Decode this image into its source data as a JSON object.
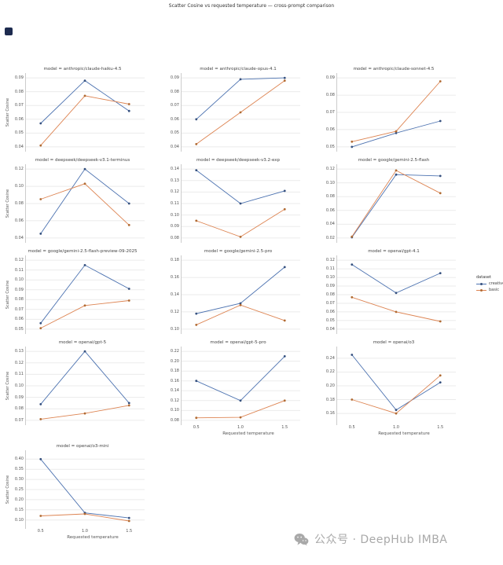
{
  "page": {
    "title": "Scatter Cosine vs requested temperature — cross-prompt comparison",
    "watermark_text": "公众号 · DeepHub IMBA"
  },
  "legend": {
    "title": "dataset",
    "entries": [
      {
        "label": "creative",
        "color": "#4C72B0",
        "dot": "#35507e"
      },
      {
        "label": "basic",
        "color": "#DD8452",
        "dot": "#b06a32"
      }
    ]
  },
  "axes": {
    "xlabel": "Requested temperature",
    "ylabel": "Scatter Cosine",
    "xticks": [
      "0.5",
      "1.0",
      "1.5"
    ]
  },
  "colors": {
    "creative": "#4C72B0",
    "basic": "#DD8452",
    "grid": "#ebebeb",
    "spine": "#cccccc"
  },
  "chart_data": [
    {
      "type": "line",
      "title": "model = anthropic/claude-haiku-4.5",
      "x": [
        0.5,
        1.0,
        1.5
      ],
      "ylim": [
        0.04,
        0.09
      ],
      "yticks": [
        0.04,
        0.05,
        0.06,
        0.07,
        0.08,
        0.09
      ],
      "series": [
        {
          "name": "creative",
          "values": [
            0.057,
            0.088,
            0.066
          ]
        },
        {
          "name": "basic",
          "values": [
            0.041,
            0.077,
            0.071
          ]
        }
      ],
      "show_ylabel": true,
      "show_xaxis": false
    },
    {
      "type": "line",
      "title": "model = anthropic/claude-opus-4.1",
      "x": [
        0.5,
        1.0,
        1.5
      ],
      "ylim": [
        0.04,
        0.09
      ],
      "yticks": [
        0.04,
        0.05,
        0.06,
        0.07,
        0.08,
        0.09
      ],
      "series": [
        {
          "name": "creative",
          "values": [
            0.06,
            0.089,
            0.09
          ]
        },
        {
          "name": "basic",
          "values": [
            0.042,
            0.065,
            0.088
          ]
        }
      ],
      "show_ylabel": false,
      "show_xaxis": false
    },
    {
      "type": "line",
      "title": "model = anthropic/claude-sonnet-4.5",
      "x": [
        0.5,
        1.0,
        1.5
      ],
      "ylim": [
        0.05,
        0.09
      ],
      "yticks": [
        0.05,
        0.06,
        0.07,
        0.08,
        0.09
      ],
      "series": [
        {
          "name": "creative",
          "values": [
            0.05,
            0.058,
            0.065
          ]
        },
        {
          "name": "basic",
          "values": [
            0.053,
            0.059,
            0.088
          ]
        }
      ],
      "show_ylabel": false,
      "show_xaxis": false
    },
    {
      "type": "line",
      "title": "model = deepseek/deepseek-v3.1-terminus",
      "x": [
        0.5,
        1.0,
        1.5
      ],
      "ylim": [
        0.04,
        0.12
      ],
      "yticks": [
        0.04,
        0.06,
        0.08,
        0.1,
        0.12
      ],
      "series": [
        {
          "name": "creative",
          "values": [
            0.045,
            0.12,
            0.08
          ]
        },
        {
          "name": "basic",
          "values": [
            0.085,
            0.103,
            0.055
          ]
        }
      ],
      "show_ylabel": true,
      "show_xaxis": false
    },
    {
      "type": "line",
      "title": "model = deepseek/deepseek-v3.2-exp",
      "x": [
        0.5,
        1.0,
        1.5
      ],
      "ylim": [
        0.08,
        0.14
      ],
      "yticks": [
        0.08,
        0.09,
        0.1,
        0.11,
        0.12,
        0.13,
        0.14
      ],
      "series": [
        {
          "name": "creative",
          "values": [
            0.139,
            0.11,
            0.121
          ]
        },
        {
          "name": "basic",
          "values": [
            0.095,
            0.081,
            0.105
          ]
        }
      ],
      "show_ylabel": false,
      "show_xaxis": false
    },
    {
      "type": "line",
      "title": "model = google/gemini-2.5-flash",
      "x": [
        0.5,
        1.0,
        1.5
      ],
      "ylim": [
        0.02,
        0.12
      ],
      "yticks": [
        0.02,
        0.04,
        0.06,
        0.08,
        0.1,
        0.12
      ],
      "series": [
        {
          "name": "creative",
          "values": [
            0.021,
            0.112,
            0.11
          ]
        },
        {
          "name": "basic",
          "values": [
            0.022,
            0.118,
            0.085
          ]
        }
      ],
      "show_ylabel": false,
      "show_xaxis": false
    },
    {
      "type": "line",
      "title": "model = google/gemini-2.5-flash-preview-09-2025",
      "x": [
        0.5,
        1.0,
        1.5
      ],
      "ylim": [
        0.05,
        0.12
      ],
      "yticks": [
        0.05,
        0.06,
        0.07,
        0.08,
        0.09,
        0.1,
        0.11,
        0.12
      ],
      "series": [
        {
          "name": "creative",
          "values": [
            0.056,
            0.115,
            0.091
          ]
        },
        {
          "name": "basic",
          "values": [
            0.051,
            0.074,
            0.079
          ]
        }
      ],
      "show_ylabel": true,
      "show_xaxis": false
    },
    {
      "type": "line",
      "title": "model = google/gemini-2.5-pro",
      "x": [
        0.5,
        1.0,
        1.5
      ],
      "ylim": [
        0.1,
        0.18
      ],
      "yticks": [
        0.1,
        0.12,
        0.14,
        0.16,
        0.18
      ],
      "series": [
        {
          "name": "creative",
          "values": [
            0.118,
            0.13,
            0.172
          ]
        },
        {
          "name": "basic",
          "values": [
            0.105,
            0.128,
            0.11
          ]
        }
      ],
      "show_ylabel": false,
      "show_xaxis": false
    },
    {
      "type": "line",
      "title": "model = openai/gpt-4.1",
      "x": [
        0.5,
        1.0,
        1.5
      ],
      "ylim": [
        0.04,
        0.12
      ],
      "yticks": [
        0.04,
        0.05,
        0.06,
        0.07,
        0.08,
        0.09,
        0.1,
        0.11,
        0.12
      ],
      "series": [
        {
          "name": "creative",
          "values": [
            0.115,
            0.082,
            0.105
          ]
        },
        {
          "name": "basic",
          "values": [
            0.077,
            0.06,
            0.049
          ]
        }
      ],
      "show_ylabel": false,
      "show_xaxis": false
    },
    {
      "type": "line",
      "title": "model = openai/gpt-5",
      "x": [
        0.5,
        1.0,
        1.5
      ],
      "ylim": [
        0.07,
        0.13
      ],
      "yticks": [
        0.07,
        0.08,
        0.09,
        0.1,
        0.11,
        0.12,
        0.13
      ],
      "series": [
        {
          "name": "creative",
          "values": [
            0.084,
            0.13,
            0.085
          ]
        },
        {
          "name": "basic",
          "values": [
            0.071,
            0.076,
            0.083
          ]
        }
      ],
      "show_ylabel": true,
      "show_xaxis": false
    },
    {
      "type": "line",
      "title": "model = openai/gpt-5-pro",
      "x": [
        0.5,
        1.0,
        1.5
      ],
      "ylim": [
        0.08,
        0.22
      ],
      "yticks": [
        0.08,
        0.1,
        0.12,
        0.14,
        0.16,
        0.18,
        0.2,
        0.22
      ],
      "series": [
        {
          "name": "creative",
          "values": [
            0.16,
            0.12,
            0.21
          ]
        },
        {
          "name": "basic",
          "values": [
            0.085,
            0.086,
            0.12
          ]
        }
      ],
      "show_ylabel": false,
      "show_xaxis": true
    },
    {
      "type": "line",
      "title": "model = openai/o3",
      "x": [
        0.5,
        1.0,
        1.5
      ],
      "ylim": [
        0.15,
        0.25
      ],
      "yticks": [
        0.16,
        0.18,
        0.2,
        0.22,
        0.24
      ],
      "series": [
        {
          "name": "creative",
          "values": [
            0.245,
            0.165,
            0.205
          ]
        },
        {
          "name": "basic",
          "values": [
            0.18,
            0.16,
            0.215
          ]
        }
      ],
      "show_ylabel": false,
      "show_xaxis": true
    },
    {
      "type": "line",
      "title": "model = openai/o3-mini",
      "x": [
        0.5,
        1.0,
        1.5
      ],
      "ylim": [
        0.08,
        0.42
      ],
      "yticks": [
        0.1,
        0.15,
        0.2,
        0.25,
        0.3,
        0.35,
        0.4
      ],
      "series": [
        {
          "name": "creative",
          "values": [
            0.4,
            0.135,
            0.11
          ]
        },
        {
          "name": "basic",
          "values": [
            0.12,
            0.13,
            0.095
          ]
        }
      ],
      "show_ylabel": true,
      "show_xaxis": true
    }
  ]
}
